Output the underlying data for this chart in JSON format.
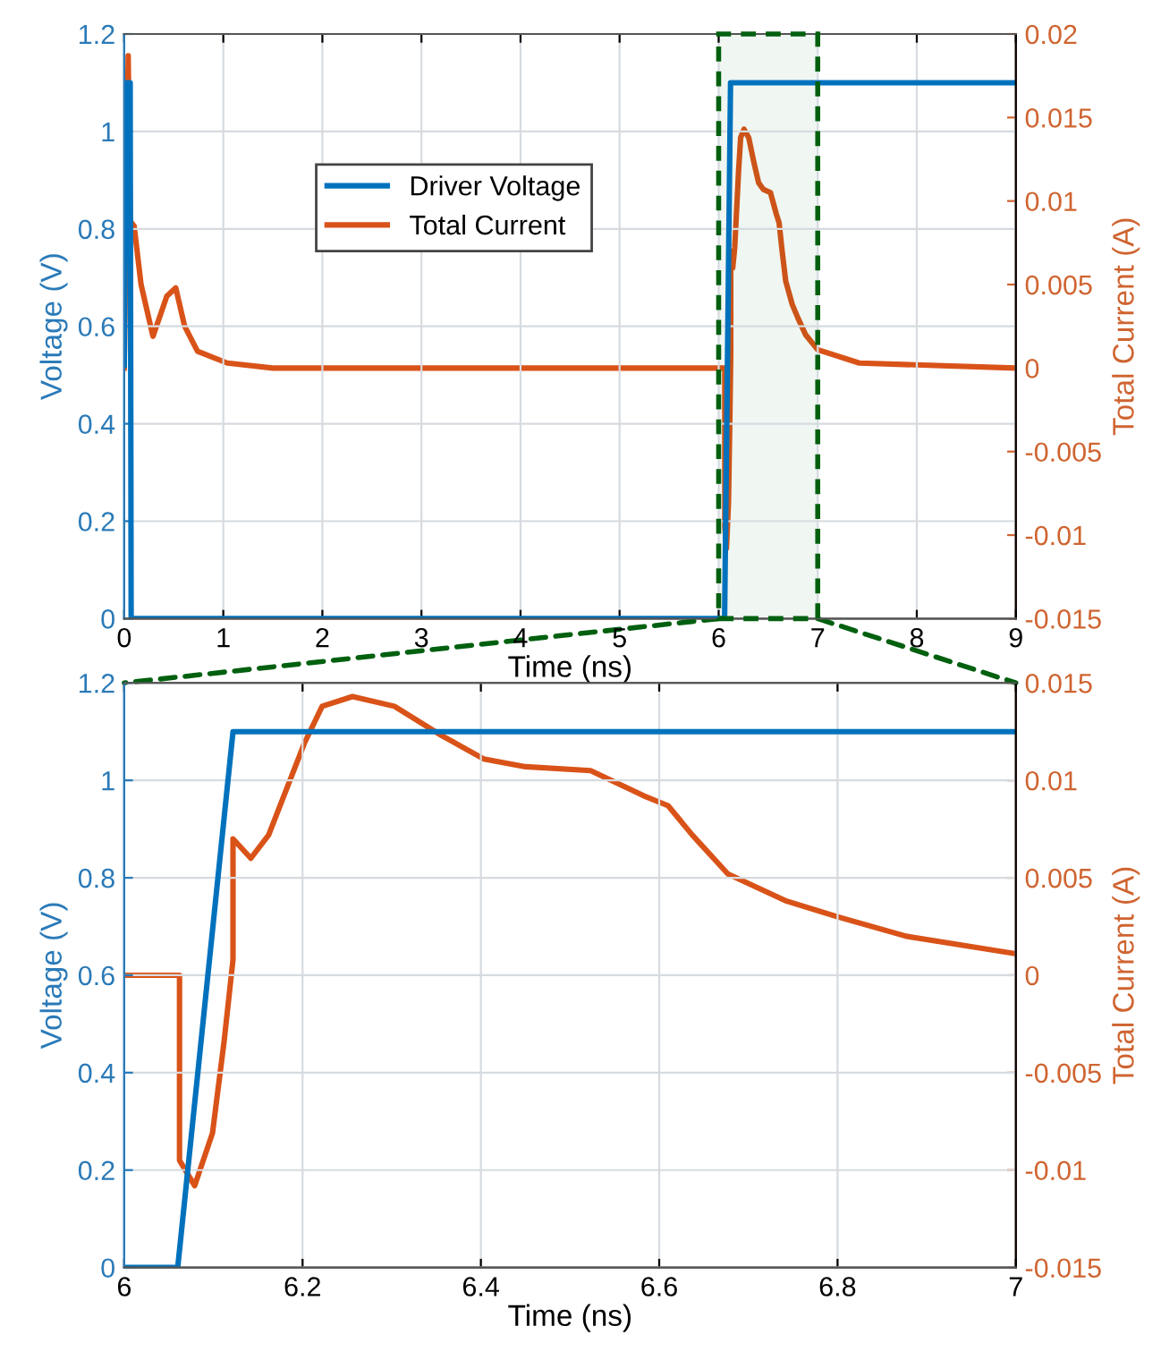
{
  "chart_data": [
    {
      "type": "line",
      "xlabel": "Time (ns)",
      "ylabel": "Voltage (V)",
      "y2label": "Total Current (A)",
      "xlim": [
        0,
        9
      ],
      "xticks": [
        0,
        1,
        2,
        3,
        4,
        5,
        6,
        7,
        8,
        9
      ],
      "ylim": [
        0,
        1.2
      ],
      "yticks": [
        0,
        0.2,
        0.4,
        0.6,
        0.8,
        1,
        1.2
      ],
      "y2lim": [
        -0.015,
        0.02
      ],
      "y2ticks": [
        -0.015,
        -0.01,
        -0.005,
        0,
        0.005,
        0.01,
        0.015,
        0.02
      ],
      "grid": true,
      "legend": "top left",
      "line_style": "solid",
      "marker": "none",
      "bands": [
        {
          "axis": "x",
          "from": 6,
          "to": 7,
          "color": "#00600f"
        }
      ],
      "series": [
        {
          "name": "Driver Voltage",
          "color": "#0072bd",
          "x": [
            0,
            0.02,
            0.06,
            0.07,
            6.06,
            6.12,
            9
          ],
          "values": [
            0.52,
            1.1,
            1.1,
            0,
            0,
            1.1,
            1.1
          ]
        },
        {
          "name": "Total Current",
          "color": "#d95319",
          "axis": "y2",
          "x": [
            0,
            0.04,
            0.06,
            0.1,
            0.17,
            0.29,
            0.43,
            0.52,
            0.61,
            0.74,
            1.04,
            1.5,
            6.0,
            6.062,
            6.062,
            6.079,
            6.099,
            6.112,
            6.122,
            6.122,
            6.142,
            6.162,
            6.202,
            6.222,
            6.256,
            6.303,
            6.356,
            6.403,
            6.45,
            6.523,
            6.583,
            6.61,
            6.637,
            6.677,
            6.743,
            6.8,
            6.877,
            7.0,
            7.42,
            9
          ],
          "values": [
            0,
            0.0187,
            0.0088,
            0.0085,
            0.005,
            0.0019,
            0.0043,
            0.0048,
            0.0025,
            0.001,
            0.0003,
            0,
            0,
            0,
            -0.0095,
            -0.0108,
            -0.0081,
            -0.0034,
            0.0008,
            0.007,
            0.006,
            0.0072,
            0.0119,
            0.0138,
            0.0143,
            0.0138,
            0.0123,
            0.0111,
            0.0107,
            0.0105,
            0.0092,
            0.0087,
            0.0072,
            0.0052,
            0.0038,
            0.003,
            0.002,
            0.0011,
            0.0003,
            0
          ]
        }
      ]
    },
    {
      "type": "line",
      "xlabel": "Time (ns)",
      "ylabel": "Voltage (V)",
      "y2label": "Total Current (A)",
      "xlim": [
        6,
        7
      ],
      "xticks": [
        6,
        6.2,
        6.4,
        6.6,
        6.8,
        7
      ],
      "ylim": [
        0,
        1.2
      ],
      "yticks": [
        0,
        0.2,
        0.4,
        0.6,
        0.8,
        1,
        1.2
      ],
      "y2lim": [
        -0.015,
        0.015
      ],
      "y2ticks": [
        -0.015,
        -0.01,
        -0.005,
        0,
        0.005,
        0.01,
        0.015
      ],
      "grid": true,
      "line_style": "solid",
      "marker": "none",
      "series": [
        {
          "color": "#0072bd",
          "x": [
            6,
            6.06,
            6.122,
            7
          ],
          "values": [
            0,
            0,
            1.1,
            1.1
          ]
        },
        {
          "color": "#d95319",
          "axis": "y2",
          "x": [
            6.0,
            6.062,
            6.062,
            6.079,
            6.099,
            6.112,
            6.122,
            6.122,
            6.142,
            6.162,
            6.202,
            6.222,
            6.256,
            6.303,
            6.356,
            6.403,
            6.45,
            6.523,
            6.583,
            6.61,
            6.637,
            6.677,
            6.743,
            6.8,
            6.877,
            7.0
          ],
          "values": [
            0,
            0,
            -0.0095,
            -0.0108,
            -0.0081,
            -0.0034,
            0.0008,
            0.007,
            0.006,
            0.0072,
            0.0119,
            0.0138,
            0.0143,
            0.0138,
            0.0123,
            0.0111,
            0.0107,
            0.0105,
            0.0092,
            0.0087,
            0.0072,
            0.0052,
            0.0038,
            0.003,
            0.002,
            0.0011
          ]
        }
      ]
    }
  ]
}
